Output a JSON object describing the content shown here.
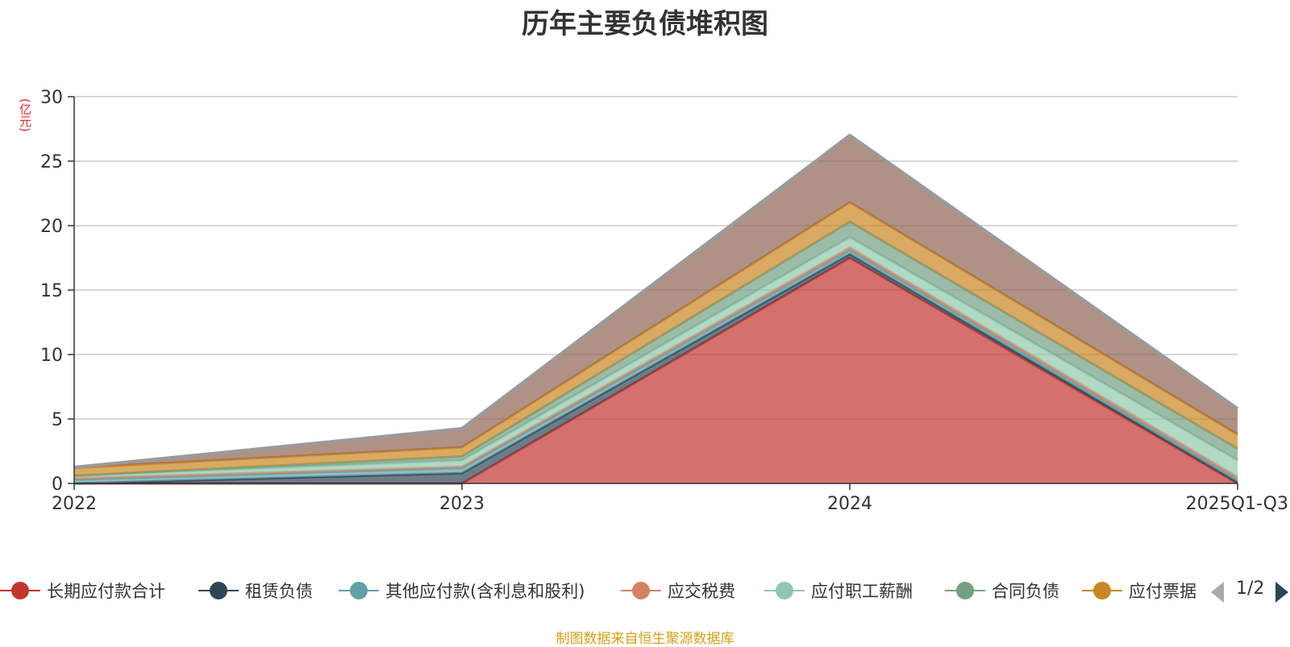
{
  "chart_data": {
    "type": "area",
    "title": "历年主要负债堆积图",
    "ylabel": "(亿元)",
    "ylim": [
      0,
      30
    ],
    "yticks": [
      0,
      5,
      10,
      15,
      20,
      25,
      30
    ],
    "categories": [
      "2022",
      "2023",
      "2024",
      "2025Q1-Q3"
    ],
    "stacked": true,
    "grid": true,
    "legend_position": "bottom",
    "series": [
      {
        "name": "长期应付款合计",
        "color": "#c23531",
        "values": [
          0.0,
          0.0,
          17.5,
          0.0
        ]
      },
      {
        "name": "租赁负债",
        "color": "#2f4554",
        "values": [
          0.0,
          0.8,
          0.3,
          0.1
        ]
      },
      {
        "name": "其他应付款(含利息和股利)",
        "color": "#61a0a8",
        "values": [
          0.3,
          0.4,
          0.3,
          0.2
        ]
      },
      {
        "name": "应交税费",
        "color": "#d48265",
        "values": [
          0.1,
          0.1,
          0.2,
          0.2
        ]
      },
      {
        "name": "应付职工薪酬",
        "color": "#91c7ae",
        "values": [
          0.2,
          0.5,
          0.8,
          1.3
        ]
      },
      {
        "name": "合同负债",
        "color": "#749f83",
        "values": [
          0.0,
          0.3,
          1.2,
          0.9
        ]
      },
      {
        "name": "应付票据",
        "color": "#ca8622",
        "values": [
          0.6,
          0.7,
          1.5,
          1.1
        ]
      },
      {
        "name": "",
        "color": "#8f6253",
        "values": [
          0.05,
          1.45,
          5.2,
          2.0
        ]
      }
    ],
    "legend_page": "1/2",
    "source": "制图数据来自恒生聚源数据库"
  }
}
